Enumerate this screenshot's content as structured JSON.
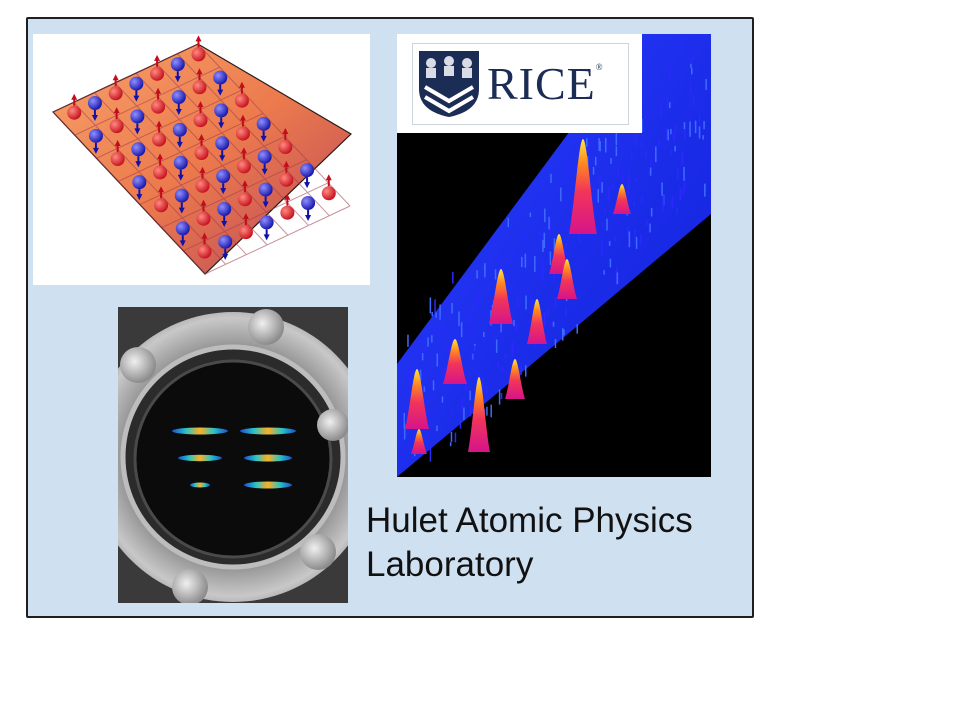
{
  "slide": {
    "title_line1": "Hulet Atomic Physics",
    "title_line2": "Laboratory"
  },
  "logo": {
    "text": "RICE",
    "registered_mark": "®"
  },
  "colors": {
    "panel_background": "#cfe0f1",
    "panel_border": "#1f1f1f",
    "logo_navy": "#1c2d55",
    "spin_up_atom": "#e8202a",
    "spin_down_atom": "#2222cc",
    "lattice_surface": "#f08a55",
    "peaks_background": "#000000",
    "peaks_floor": "#1a2cff"
  },
  "images": {
    "lattice": "optical-lattice-spin-illustration",
    "peaks": "atom-density-3d-peaks-plot",
    "chamber": "vacuum-chamber-window-photo"
  }
}
